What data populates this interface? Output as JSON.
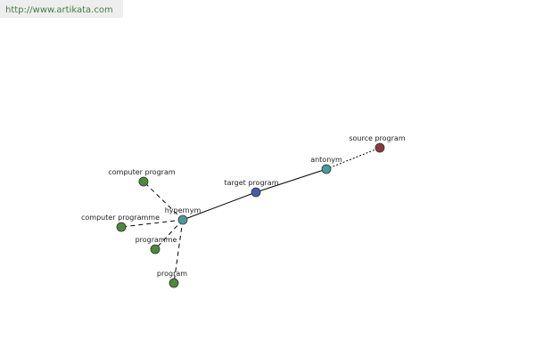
{
  "url": "http://www.artikata.com",
  "nodes": [
    {
      "label": "source program"
    },
    {
      "label": "antonym"
    },
    {
      "label": "target program"
    },
    {
      "label": "hypernym"
    },
    {
      "label": "computer program"
    },
    {
      "label": "computer programme"
    },
    {
      "label": "programme"
    },
    {
      "label": "program"
    }
  ]
}
